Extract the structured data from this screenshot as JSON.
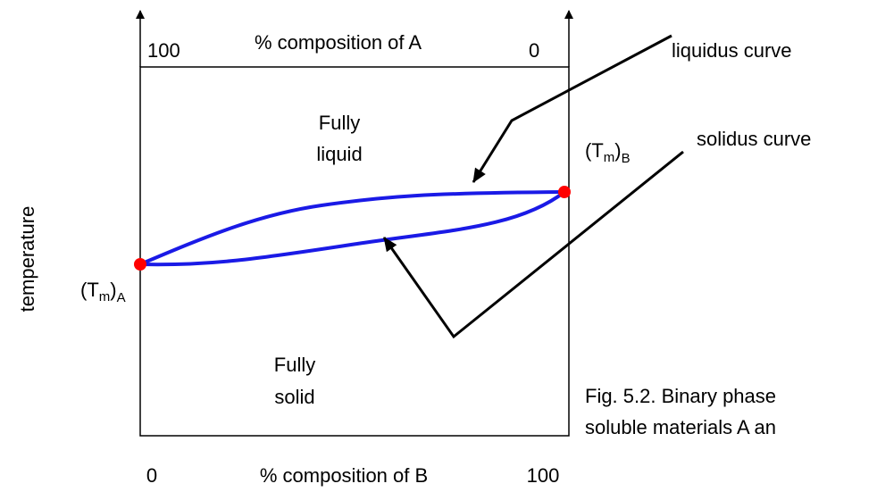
{
  "top_axis": {
    "left": "100",
    "label": "% composition of A",
    "right": "0"
  },
  "bottom_axis": {
    "left": "0",
    "label": "% composition of B",
    "right": "100"
  },
  "y_axis": {
    "label": "temperature"
  },
  "regions": {
    "liquid": [
      "Fully",
      "liquid"
    ],
    "solid": [
      "Fully",
      "solid"
    ]
  },
  "melting_points": {
    "a": [
      "(T",
      "m",
      ")",
      "A"
    ],
    "b": [
      "(T",
      "m",
      ")",
      "B"
    ]
  },
  "callouts": {
    "liquidus": "liquidus curve",
    "solidus": "solidus curve"
  },
  "caption": [
    "Fig. 5.2.  Binary phase",
    "soluble materials A an"
  ]
}
